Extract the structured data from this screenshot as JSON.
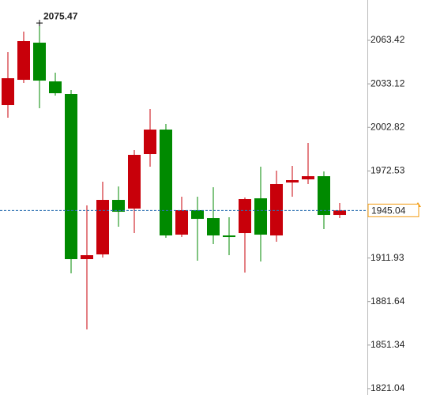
{
  "chart_data": {
    "type": "candlestick",
    "up_color": "#c8000a",
    "down_color": "#008a00",
    "ylim": [
      1816.6,
      2091.46
    ],
    "yticks": [
      2063.42,
      2033.12,
      2002.82,
      1972.53,
      1911.93,
      1881.64,
      1851.34,
      1821.04
    ],
    "candles": [
      {
        "open": 2018.34,
        "high": 2055.17,
        "low": 2009.55,
        "close": 2037.03
      },
      {
        "open": 2035.93,
        "high": 2069.47,
        "low": 2033.73,
        "close": 2062.87
      },
      {
        "open": 2061.77,
        "high": 2075.47,
        "low": 2016.14,
        "close": 2035.38
      },
      {
        "open": 2034.83,
        "high": 2040.88,
        "low": 2024.94,
        "close": 2026.59
      },
      {
        "open": 2026.04,
        "high": 2028.78,
        "low": 1901.24,
        "close": 1911.14
      },
      {
        "open": 1911.14,
        "high": 1948.52,
        "low": 1862.2,
        "close": 1913.89
      },
      {
        "open": 1914.44,
        "high": 1965.0,
        "low": 1912.24,
        "close": 1952.37
      },
      {
        "open": 1952.37,
        "high": 1961.71,
        "low": 1933.68,
        "close": 1944.12
      },
      {
        "open": 1946.32,
        "high": 1987.0,
        "low": 1929.3,
        "close": 1983.71
      },
      {
        "open": 1984.26,
        "high": 2015.59,
        "low": 1975.46,
        "close": 2001.3
      },
      {
        "open": 2001.3,
        "high": 2005.15,
        "low": 1925.98,
        "close": 1927.63
      },
      {
        "open": 1928.18,
        "high": 1954.57,
        "low": 1926.53,
        "close": 1945.22
      },
      {
        "open": 1945.22,
        "high": 1954.57,
        "low": 1910.04,
        "close": 1939.17
      },
      {
        "open": 1939.72,
        "high": 1961.16,
        "low": 1921.59,
        "close": 1927.63
      },
      {
        "open": 1927.63,
        "high": 1940.27,
        "low": 1913.89,
        "close": 1926.53
      },
      {
        "open": 1929.28,
        "high": 1954.02,
        "low": 1901.79,
        "close": 1952.92
      },
      {
        "open": 1953.47,
        "high": 1975.46,
        "low": 1909.49,
        "close": 1928.18
      },
      {
        "open": 1927.63,
        "high": 1972.71,
        "low": 1923.23,
        "close": 1963.37
      },
      {
        "open": 1964.47,
        "high": 1976.01,
        "low": 1954.57,
        "close": 1966.12
      },
      {
        "open": 1966.66,
        "high": 1991.95,
        "low": 1963.37,
        "close": 1968.86
      },
      {
        "open": 1968.86,
        "high": 1972.16,
        "low": 1932.03,
        "close": 1941.92
      },
      {
        "open": 1941.92,
        "high": 1950.17,
        "low": 1939.72,
        "close": 1945.04
      }
    ],
    "high_marker_candle": 2,
    "last_price": 1945.04
  }
}
